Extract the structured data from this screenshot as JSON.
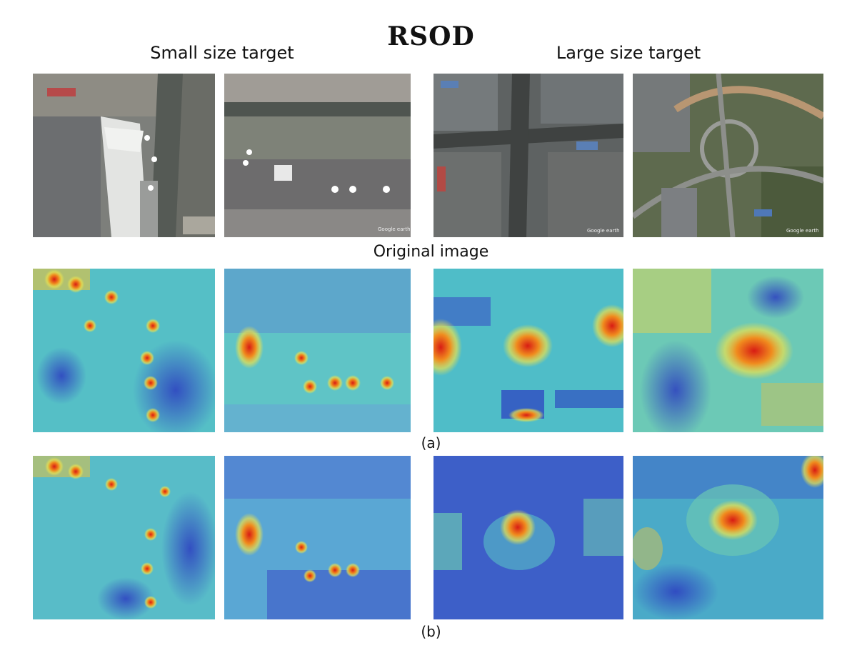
{
  "figure": {
    "title": "RSOD",
    "left_group_label": "Small size target",
    "right_group_label": "Large size target",
    "row1_label": "Original image",
    "row2_caption": "(a)",
    "row3_caption": "(b)"
  },
  "watermark": "Google earth",
  "colors": {
    "heat_low": "#2c3cc0",
    "heat_mid": "#3fb8c8",
    "heat_high": "#e0281c",
    "satellite_base": "#6b6f6c"
  }
}
